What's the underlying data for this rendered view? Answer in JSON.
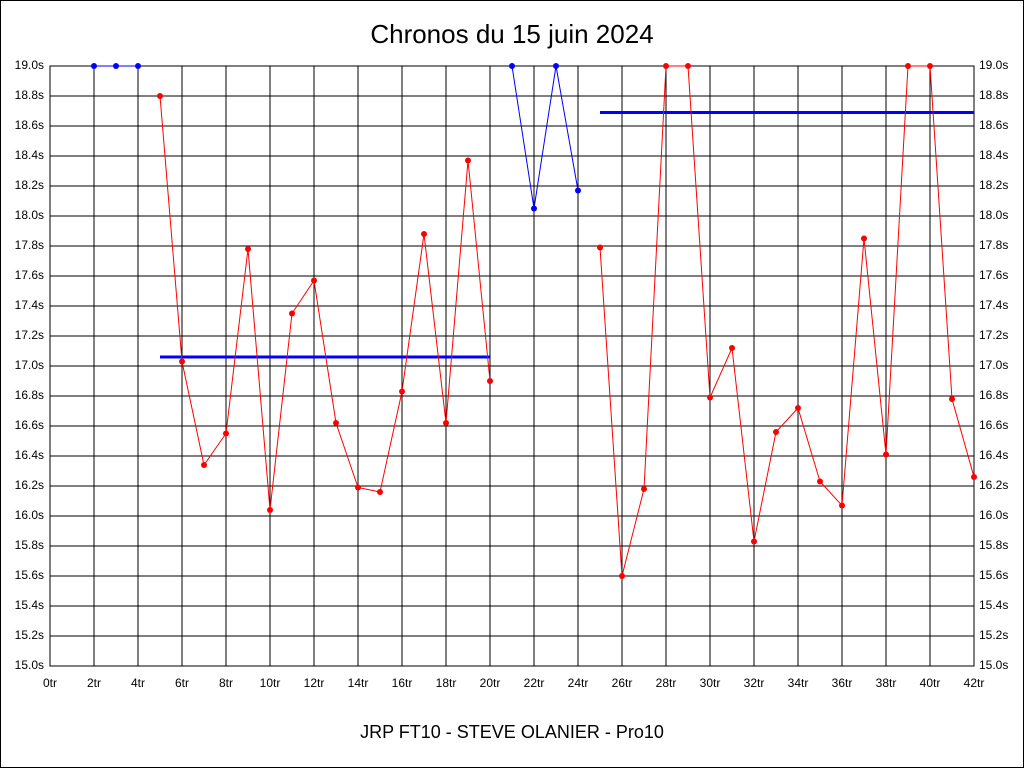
{
  "chart_data": {
    "type": "line",
    "title": "Chronos du 15 juin 2024",
    "xlabel": "JRP FT10 - STEVE OLANIER - Pro10",
    "x": [
      2,
      3,
      4,
      5,
      6,
      7,
      8,
      9,
      10,
      11,
      12,
      13,
      14,
      15,
      16,
      17,
      18,
      19,
      20,
      21,
      22,
      23,
      24,
      25,
      26,
      27,
      28,
      29,
      30,
      31,
      32,
      33,
      34,
      35,
      36,
      37,
      38,
      39,
      40,
      41,
      42
    ],
    "series": [
      {
        "color": "#ff0000",
        "values": [
          null,
          null,
          null,
          18.8,
          17.03,
          16.34,
          16.55,
          17.78,
          16.04,
          17.35,
          17.57,
          16.62,
          16.19,
          16.16,
          16.83,
          17.88,
          16.62,
          18.37,
          16.9,
          null,
          null,
          null,
          null,
          17.79,
          15.6,
          16.18,
          19.0,
          19.0,
          16.79,
          17.12,
          15.83,
          16.56,
          16.72,
          16.23,
          16.07,
          17.85,
          16.41,
          19.0,
          19.0,
          16.78,
          16.26
        ]
      },
      {
        "color": "#0000ff",
        "values": [
          19.0,
          19.0,
          19.0,
          null,
          null,
          null,
          null,
          null,
          null,
          null,
          null,
          null,
          null,
          null,
          null,
          null,
          null,
          null,
          null,
          19.0,
          18.05,
          19.0,
          18.17,
          null,
          null,
          null,
          null,
          null,
          null,
          null,
          null,
          null,
          null,
          null,
          null,
          null,
          null,
          null,
          null,
          null,
          null
        ]
      }
    ],
    "averages": [
      {
        "x": [
          5,
          20
        ],
        "value": 17.06,
        "color": "#0000ff"
      },
      {
        "x": [
          25,
          42
        ],
        "value": 18.69,
        "color": "#0000ff"
      }
    ],
    "xlim": [
      0,
      42
    ],
    "xticks": [
      {
        "value": 0,
        "label": "0tr"
      },
      {
        "value": 2,
        "label": "2tr"
      },
      {
        "value": 4,
        "label": "4tr"
      },
      {
        "value": 6,
        "label": "6tr"
      },
      {
        "value": 8,
        "label": "8tr"
      },
      {
        "value": 10,
        "label": "10tr"
      },
      {
        "value": 12,
        "label": "12tr"
      },
      {
        "value": 14,
        "label": "14tr"
      },
      {
        "value": 16,
        "label": "16tr"
      },
      {
        "value": 18,
        "label": "18tr"
      },
      {
        "value": 20,
        "label": "20tr"
      },
      {
        "value": 22,
        "label": "22tr"
      },
      {
        "value": 24,
        "label": "24tr"
      },
      {
        "value": 26,
        "label": "26tr"
      },
      {
        "value": 28,
        "label": "28tr"
      },
      {
        "value": 30,
        "label": "30tr"
      },
      {
        "value": 32,
        "label": "32tr"
      },
      {
        "value": 34,
        "label": "34tr"
      },
      {
        "value": 36,
        "label": "36tr"
      },
      {
        "value": 38,
        "label": "38tr"
      },
      {
        "value": 40,
        "label": "40tr"
      },
      {
        "value": 42,
        "label": "42tr"
      }
    ],
    "ylim": [
      15.0,
      19.0
    ],
    "yticks": [
      {
        "value": 15.0,
        "label": "15.0s"
      },
      {
        "value": 15.2,
        "label": "15.2s"
      },
      {
        "value": 15.4,
        "label": "15.4s"
      },
      {
        "value": 15.6,
        "label": "15.6s"
      },
      {
        "value": 15.8,
        "label": "15.8s"
      },
      {
        "value": 16.0,
        "label": "16.0s"
      },
      {
        "value": 16.2,
        "label": "16.2s"
      },
      {
        "value": 16.4,
        "label": "16.4s"
      },
      {
        "value": 16.6,
        "label": "16.6s"
      },
      {
        "value": 16.8,
        "label": "16.8s"
      },
      {
        "value": 17.0,
        "label": "17.0s"
      },
      {
        "value": 17.2,
        "label": "17.2s"
      },
      {
        "value": 17.4,
        "label": "17.4s"
      },
      {
        "value": 17.6,
        "label": "17.6s"
      },
      {
        "value": 17.8,
        "label": "17.8s"
      },
      {
        "value": 18.0,
        "label": "18.0s"
      },
      {
        "value": 18.2,
        "label": "18.2s"
      },
      {
        "value": 18.4,
        "label": "18.4s"
      },
      {
        "value": 18.6,
        "label": "18.6s"
      },
      {
        "value": 18.8,
        "label": "18.8s"
      },
      {
        "value": 19.0,
        "label": "19.0s"
      }
    ],
    "grid": true
  }
}
